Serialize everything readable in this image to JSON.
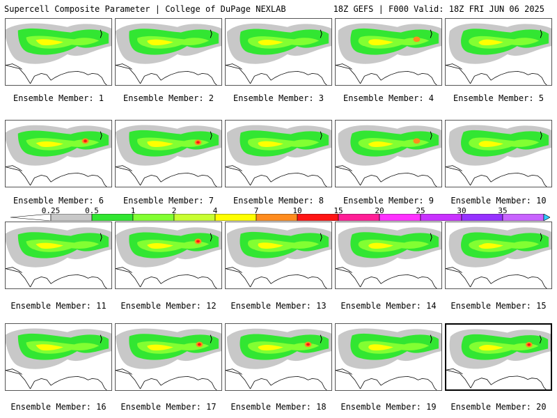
{
  "header": {
    "left": "Supercell Composite Parameter | College of DuPage NEXLAB",
    "right": "18Z GEFS | F000 Valid: 18Z FRI JUN 06 2025"
  },
  "members": [
    {
      "label": "Ensemble Member: 1"
    },
    {
      "label": "Ensemble Member: 2"
    },
    {
      "label": "Ensemble Member: 3"
    },
    {
      "label": "Ensemble Member: 4"
    },
    {
      "label": "Ensemble Member: 5"
    },
    {
      "label": "Ensemble Member: 6"
    },
    {
      "label": "Ensemble Member: 7"
    },
    {
      "label": "Ensemble Member: 8"
    },
    {
      "label": "Ensemble Member: 9"
    },
    {
      "label": "Ensemble Member: 10"
    },
    {
      "label": "Ensemble Member: 11"
    },
    {
      "label": "Ensemble Member: 12"
    },
    {
      "label": "Ensemble Member: 13"
    },
    {
      "label": "Ensemble Member: 14"
    },
    {
      "label": "Ensemble Member: 15"
    },
    {
      "label": "Ensemble Member: 16"
    },
    {
      "label": "Ensemble Member: 17"
    },
    {
      "label": "Ensemble Member: 18"
    },
    {
      "label": "Ensemble Member: 19"
    },
    {
      "label": "Ensemble Member: 20"
    }
  ],
  "selected_member": 20,
  "colorbar": {
    "levels": [
      "0.25",
      "0.5",
      "1",
      "2",
      "4",
      "7",
      "10",
      "15",
      "20",
      "25",
      "30",
      "35"
    ],
    "colors": [
      "#c8c8c8",
      "#32e632",
      "#82ff32",
      "#c8ff32",
      "#ffff00",
      "#ff8c1e",
      "#ff1414",
      "#ff1e96",
      "#ff32ff",
      "#c832ff",
      "#9632ff",
      "#c864ff",
      "#32c8ff"
    ]
  }
}
